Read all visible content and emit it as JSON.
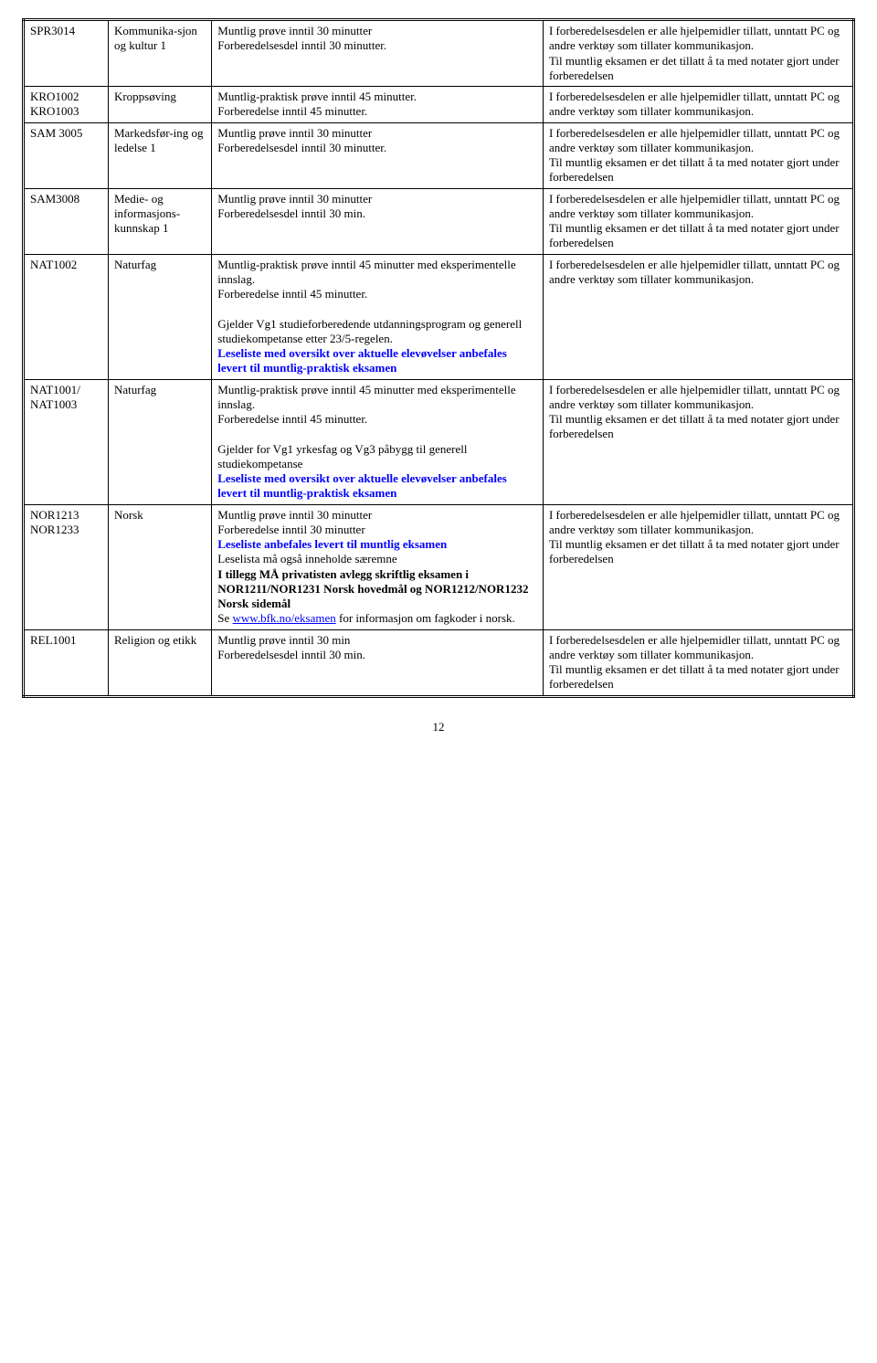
{
  "rows": [
    {
      "code": "SPR3014",
      "subject": "Kommunika-sjon og kultur 1",
      "col3": [
        {
          "t": "Muntlig prøve inntil 30 minutter"
        },
        {
          "t": "Forberedelsesdel inntil 30 minutter."
        }
      ],
      "col4": [
        {
          "t": "I forberedelsesdelen er alle hjelpemidler tillatt, unntatt PC og andre verktøy som tillater kommunikasjon."
        },
        {
          "t": "Til muntlig eksamen er det tillatt å ta med notater gjort under forberedelsen"
        }
      ]
    },
    {
      "code": "KRO1002 KRO1003",
      "subject": "Kroppsøving",
      "col3": [
        {
          "t": "Muntlig-praktisk prøve inntil 45 minutter."
        },
        {
          "t": "Forberedelse inntil 45 minutter."
        }
      ],
      "col4": [
        {
          "t": "I forberedelsesdelen er alle hjelpemidler tillatt, unntatt PC og andre verktøy som tillater kommunikasjon."
        }
      ]
    },
    {
      "code": "SAM 3005",
      "subject": "Markedsfør-ing og ledelse 1",
      "col3": [
        {
          "t": "Muntlig prøve inntil 30 minutter"
        },
        {
          "t": "Forberedelsesdel inntil 30 minutter."
        }
      ],
      "col4": [
        {
          "t": "I forberedelsesdelen er alle hjelpemidler tillatt, unntatt PC og andre verktøy som tillater kommunikasjon."
        },
        {
          "t": "Til muntlig eksamen er det tillatt å ta med notater gjort under forberedelsen"
        }
      ]
    },
    {
      "code": "SAM3008",
      "subject": "Medie- og informasjons-kunnskap  1",
      "col3": [
        {
          "t": "Muntlig prøve inntil 30 minutter"
        },
        {
          "t": "Forberedelsesdel inntil 30 min."
        }
      ],
      "col4": [
        {
          "t": "I forberedelsesdelen er alle hjelpemidler tillatt, unntatt PC og andre verktøy som tillater kommunikasjon."
        },
        {
          "t": "Til muntlig eksamen er det tillatt å ta med notater gjort under forberedelsen"
        }
      ]
    },
    {
      "code": "NAT1002",
      "subject": "Naturfag",
      "col3": [
        {
          "t": "Muntlig-praktisk prøve inntil 45 minutter med eksperimentelle innslag."
        },
        {
          "t": "Forberedelse inntil 45 minutter."
        },
        {
          "t": ""
        },
        {
          "t": "Gjelder Vg1 studieforberedende utdanningsprogram og generell studiekompetanse etter 23/5-regelen."
        },
        {
          "t": "Leseliste med oversikt over aktuelle elevøvelser anbefales levert til muntlig-praktisk eksamen",
          "cls": "blue bold"
        }
      ],
      "col4": [
        {
          "t": "I forberedelsesdelen er alle hjelpemidler tillatt, unntatt PC og andre verktøy som tillater kommunikasjon."
        }
      ]
    },
    {
      "code": "NAT1001/ NAT1003",
      "subject": "Naturfag",
      "col3": [
        {
          "t": "Muntlig-praktisk prøve inntil 45 minutter med eksperimentelle innslag."
        },
        {
          "t": "Forberedelse inntil 45 minutter."
        },
        {
          "t": ""
        },
        {
          "t": "Gjelder for Vg1 yrkesfag og Vg3 påbygg til generell studiekompetanse"
        },
        {
          "t": "Leseliste med oversikt over aktuelle elevøvelser anbefales levert til muntlig-praktisk eksamen",
          "cls": "blue bold"
        }
      ],
      "col4": [
        {
          "t": "I forberedelsesdelen er alle hjelpemidler tillatt, unntatt PC og andre verktøy som tillater kommunikasjon."
        },
        {
          "t": "Til muntlig eksamen er det tillatt å ta med notater gjort under forberedelsen"
        }
      ]
    },
    {
      "code": "NOR1213 NOR1233",
      "subject": "Norsk",
      "col3": [
        {
          "t": "Muntlig prøve inntil 30 minutter"
        },
        {
          "t": "Forberedelse inntil 30 minutter"
        },
        {
          "t": "Leseliste anbefales levert til muntlig eksamen",
          "cls": "blue bold"
        },
        {
          "t": "Leselista må også inneholde særemne"
        },
        {
          "t": "I tillegg MÅ privatisten avlegg skriftlig eksamen i NOR1211/NOR1231 Norsk hovedmål og NOR1212/NOR1232 Norsk sidemål",
          "cls": "bold"
        },
        {
          "link_prefix": "Se ",
          "link_text": "www.bfk.no/eksamen",
          "link_suffix": " for informasjon om fagkoder i norsk."
        }
      ],
      "col4": [
        {
          "t": "I forberedelsesdelen er alle hjelpemidler tillatt, unntatt PC og andre verktøy som tillater kommunikasjon."
        },
        {
          "t": "Til muntlig eksamen er det tillatt å ta med notater gjort under forberedelsen"
        }
      ]
    },
    {
      "code": "REL1001",
      "subject": "Religion og etikk",
      "col3": [
        {
          "t": "Muntlig prøve inntil 30 min"
        },
        {
          "t": "Forberedelsesdel inntil 30 min."
        }
      ],
      "col4": [
        {
          "t": "I forberedelsesdelen er alle hjelpemidler tillatt, unntatt PC og andre verktøy som tillater kommunikasjon."
        },
        {
          "t": "Til muntlig eksamen er det tillatt å ta med notater gjort under forberedelsen"
        }
      ]
    }
  ],
  "page_number": "12"
}
